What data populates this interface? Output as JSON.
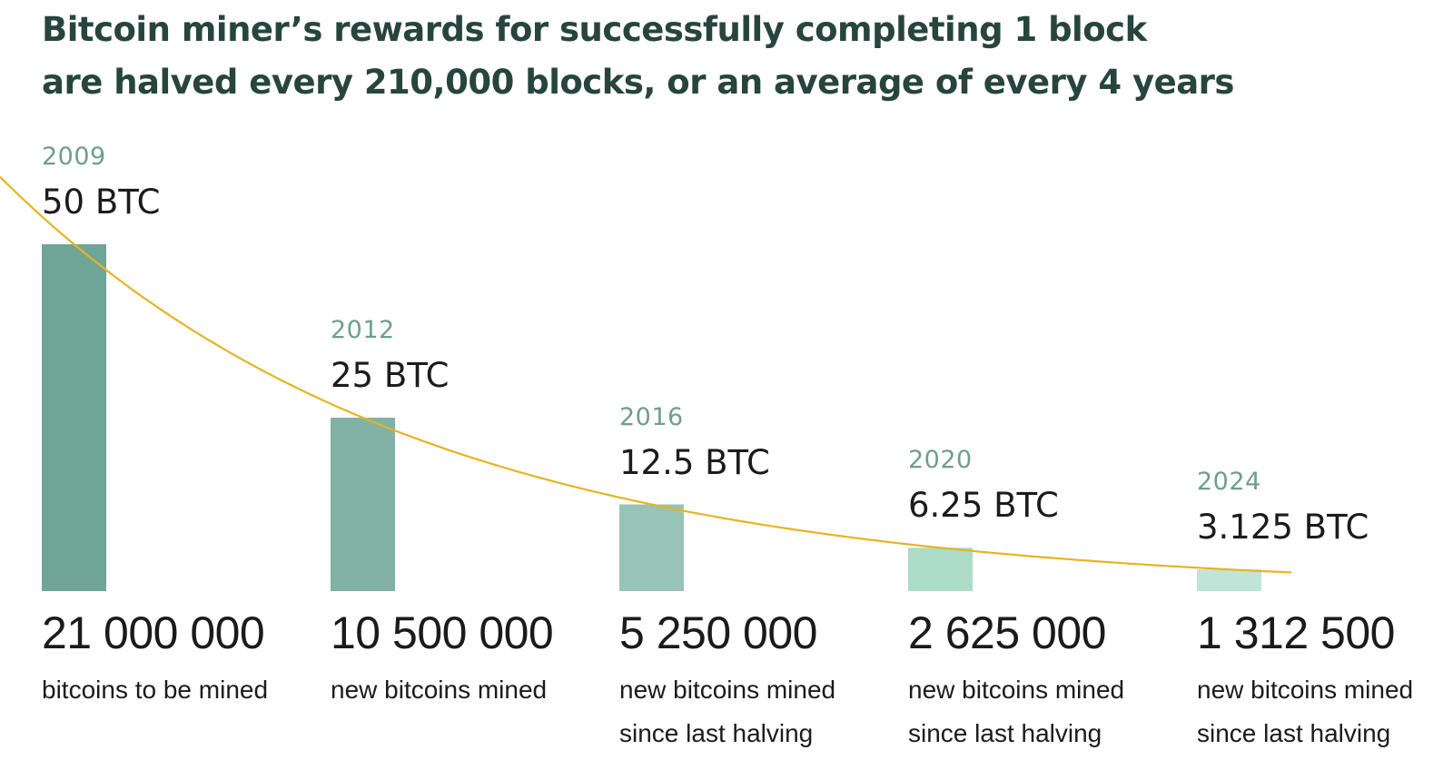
{
  "title": {
    "line1": "Bitcoin miner’s rewards for successfully completing 1 block",
    "line2": "are halved every 210,000 blocks, or an average of every 4 years"
  },
  "colors": {
    "title": "#27453c",
    "year": "#6e9e8f",
    "curve": "#e6b422",
    "bars": [
      "#6fa596",
      "#82b2a5",
      "#98c3b7",
      "#addcc9",
      "#c0e4d7"
    ]
  },
  "chart_data": {
    "type": "bar",
    "title": "Bitcoin miner’s rewards for successfully completing 1 block are halved every 210,000 blocks, or an average of every 4 years",
    "categories": [
      "2009",
      "2012",
      "2016",
      "2020",
      "2024"
    ],
    "series": [
      {
        "values": [
          50,
          25,
          12.5,
          6.25,
          3.125
        ]
      }
    ],
    "value_labels": [
      "50 BTC",
      "25 BTC",
      "12.5 BTC",
      "6.25 BTC",
      "3.125 BTC"
    ],
    "counts": [
      "21 000 000",
      "10 500 000",
      "5 250 000",
      "2 625 000",
      "1 312 500"
    ],
    "descriptions": [
      [
        "bitcoins to be mined"
      ],
      [
        "new bitcoins mined"
      ],
      [
        "new bitcoins mined",
        "since last halving"
      ],
      [
        "new bitcoins mined",
        "since last halving"
      ],
      [
        "new bitcoins mined",
        "since last halving"
      ]
    ],
    "trend_line": "decay curve through bar tops",
    "ylim": [
      0,
      50
    ],
    "grid": false,
    "legend": "none"
  }
}
